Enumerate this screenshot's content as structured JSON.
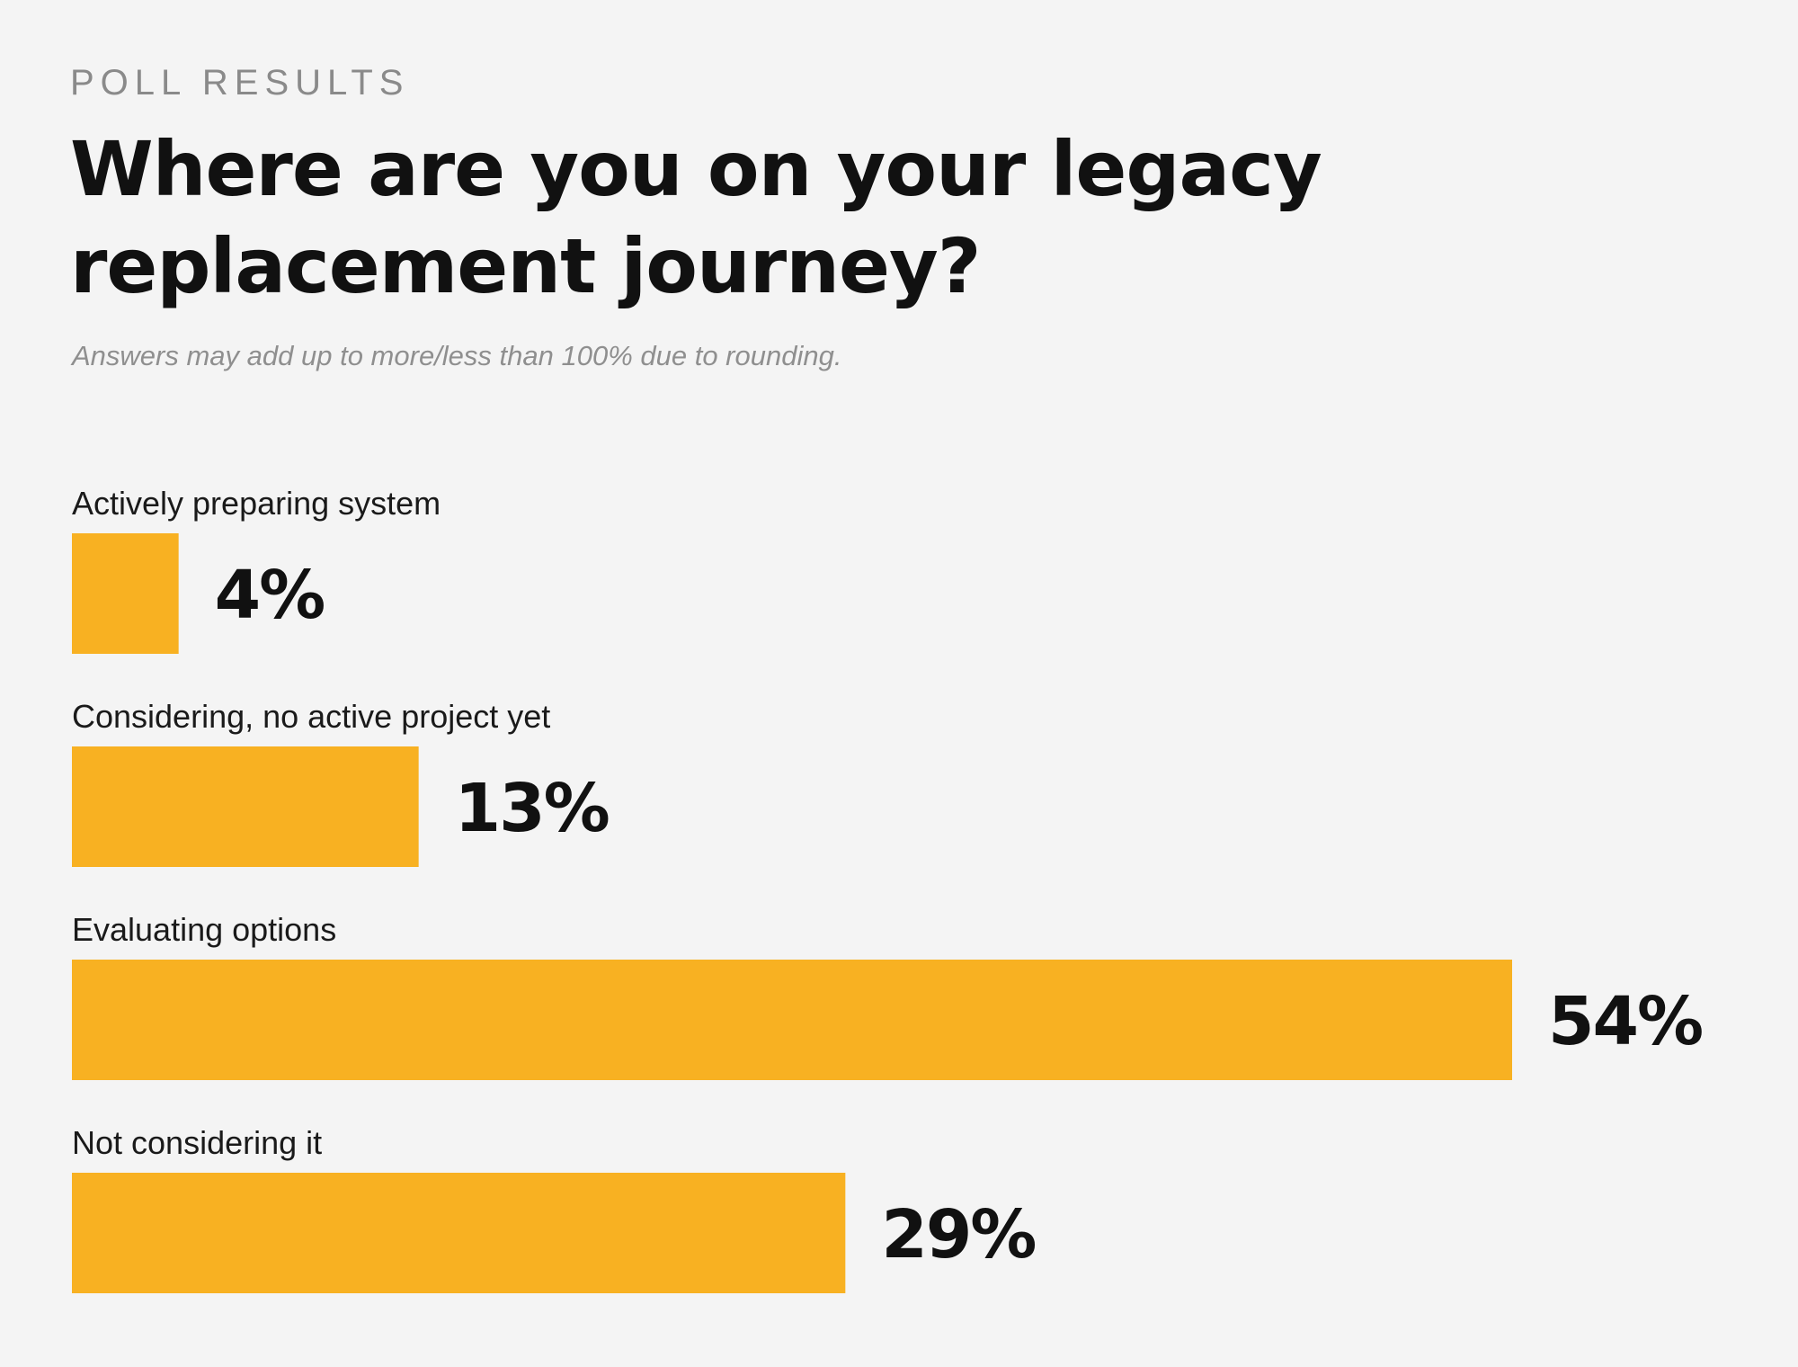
{
  "header": {
    "kicker": "POLL RESULTS",
    "title": "Where are you on your legacy replacement journey?",
    "note": "Answers may add up to more/less than 100% due to rounding."
  },
  "colors": {
    "background": "#f4f4f4",
    "bar": "#f8b122",
    "text": "#111111",
    "muted": "#8a8a8a"
  },
  "chart_data": {
    "type": "bar",
    "orientation": "horizontal",
    "categories": [
      "Actively preparing system",
      "Considering, no active project yet",
      "Evaluating options",
      "Not considering it"
    ],
    "values": [
      4,
      13,
      54,
      29
    ],
    "value_labels": [
      "4%",
      "13%",
      "54%",
      "29%"
    ],
    "unit": "%",
    "xlim": [
      0,
      54
    ],
    "grid": false,
    "legend": "none"
  }
}
